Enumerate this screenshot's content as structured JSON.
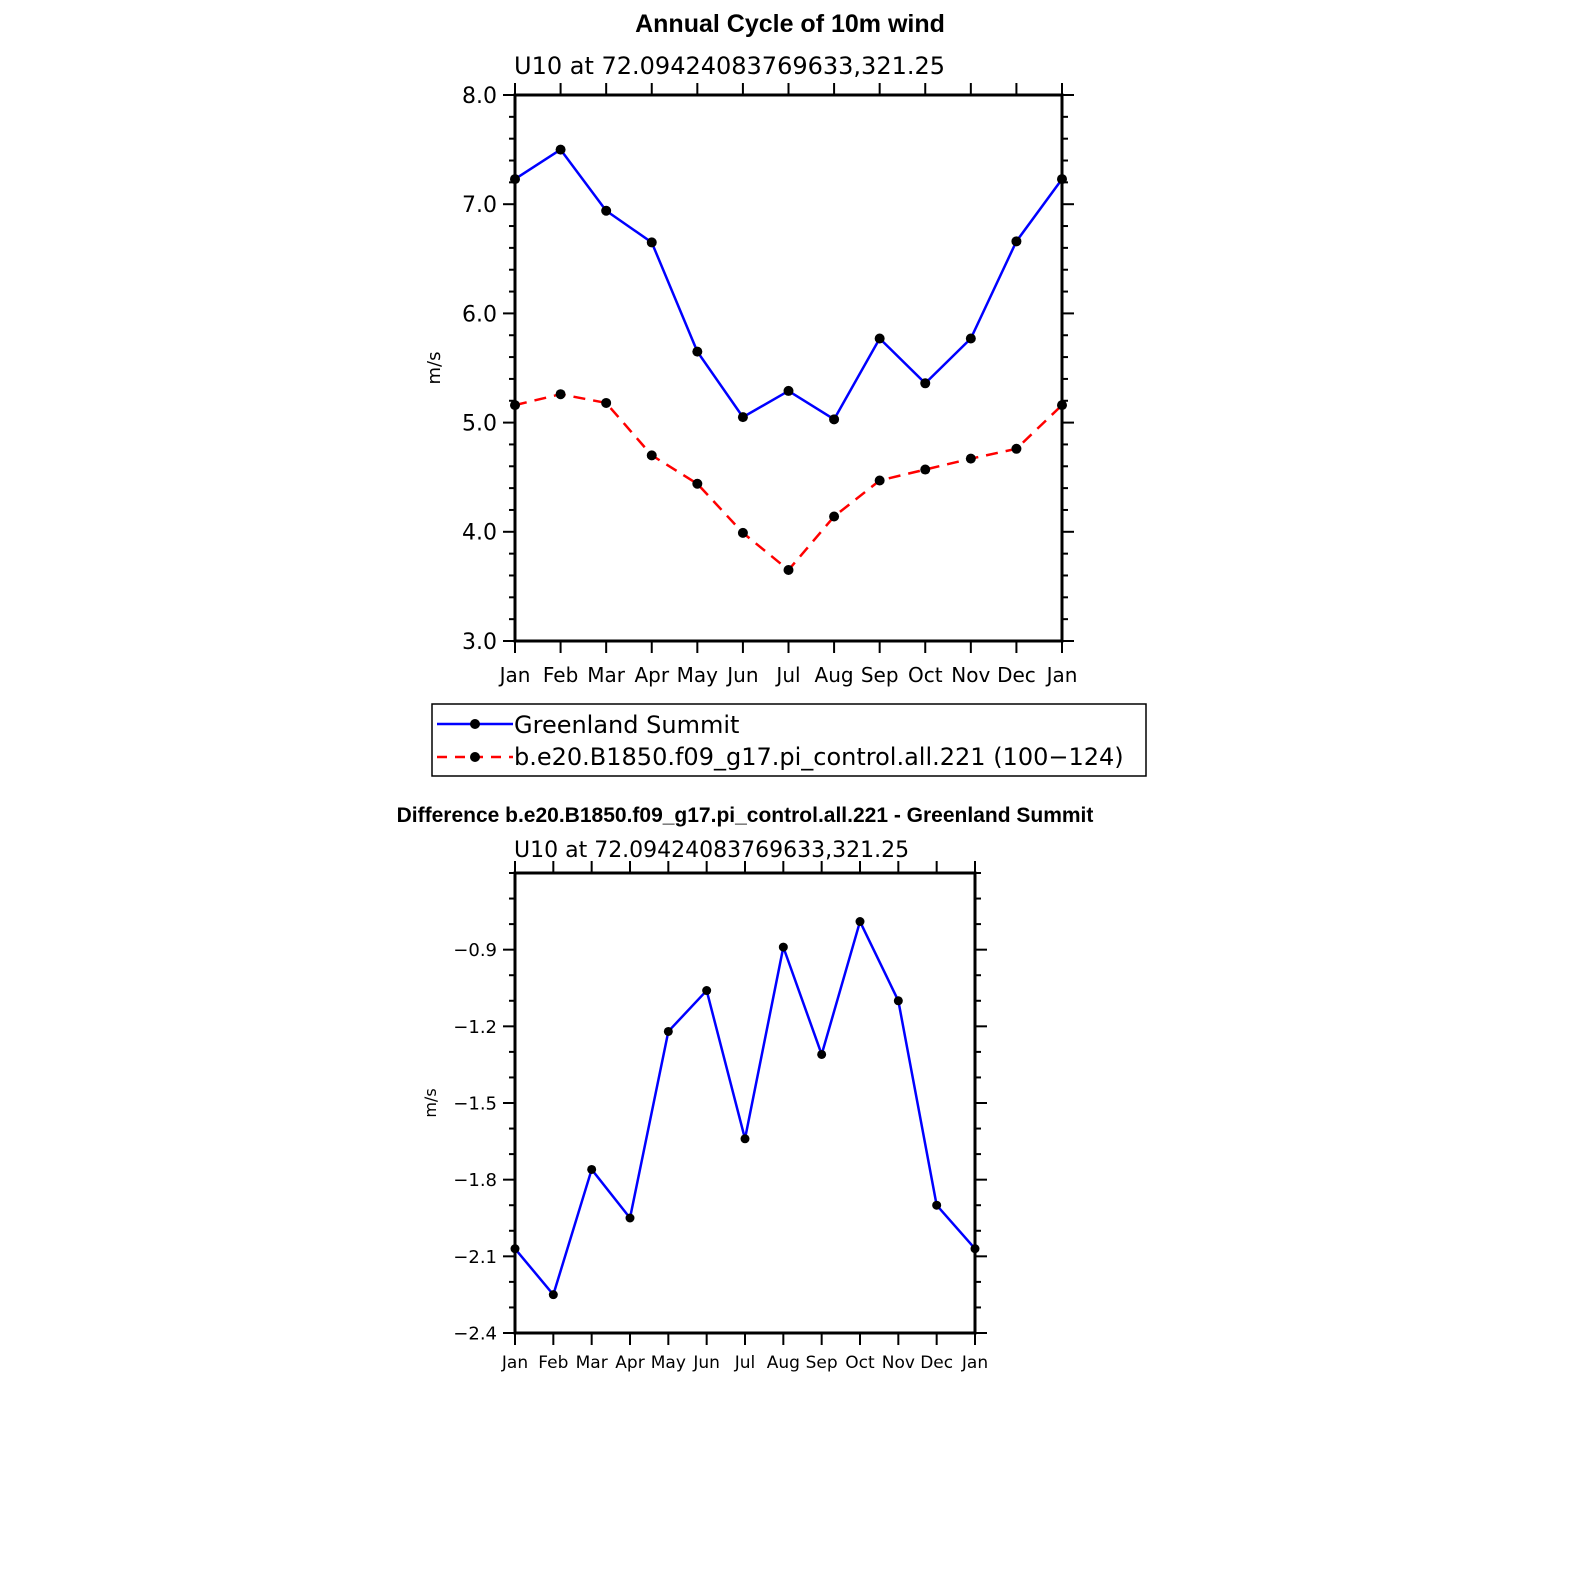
{
  "chart_data": [
    {
      "type": "line",
      "title": "Annual Cycle of 10m wind",
      "subtitle": "U10 at 72.09424083769633,321.25",
      "xlabel": "",
      "ylabel": "m/s",
      "categories": [
        "Jan",
        "Feb",
        "Mar",
        "Apr",
        "May",
        "Jun",
        "Jul",
        "Aug",
        "Sep",
        "Oct",
        "Nov",
        "Dec",
        "Jan"
      ],
      "ylim": [
        3.0,
        8.0
      ],
      "yticks": [
        "3.0",
        "4.0",
        "5.0",
        "6.0",
        "7.0",
        "8.0"
      ],
      "grid": false,
      "legend_position": "bottom",
      "series": [
        {
          "name": "Greenland Summit",
          "color": "#0000ff",
          "dash": "solid",
          "marker": "filled-circle",
          "values": [
            7.23,
            7.5,
            6.94,
            6.65,
            5.65,
            5.05,
            5.29,
            5.03,
            5.77,
            5.36,
            5.77,
            6.66,
            7.23
          ]
        },
        {
          "name": "b.e20.B1850.f09_g17.pi_control.all.221 (100−124)",
          "color": "#ff0000",
          "dash": "dashed",
          "marker": "filled-circle",
          "values": [
            5.16,
            5.26,
            5.18,
            4.7,
            4.44,
            3.99,
            3.65,
            4.14,
            4.47,
            4.57,
            4.67,
            4.76,
            5.16
          ]
        }
      ]
    },
    {
      "type": "line",
      "title": "Difference b.e20.B1850.f09_g17.pi_control.all.221 - Greenland Summit",
      "subtitle": "U10 at 72.09424083769633,321.25",
      "xlabel": "",
      "ylabel": "m/s",
      "categories": [
        "Jan",
        "Feb",
        "Mar",
        "Apr",
        "May",
        "Jun",
        "Jul",
        "Aug",
        "Sep",
        "Oct",
        "Nov",
        "Dec",
        "Jan"
      ],
      "ylim": [
        -2.4,
        -0.6
      ],
      "yticks": [
        "−2.4",
        "−2.1",
        "−1.8",
        "−1.5",
        "−1.2",
        "−0.9"
      ],
      "grid": false,
      "series": [
        {
          "color": "#0000ff",
          "dash": "solid",
          "marker": "filled-circle",
          "values": [
            -2.07,
            -2.25,
            -1.76,
            -1.95,
            -1.22,
            -1.06,
            -1.64,
            -0.89,
            -1.31,
            -0.79,
            -1.1,
            -1.9,
            -2.07
          ]
        }
      ]
    }
  ]
}
